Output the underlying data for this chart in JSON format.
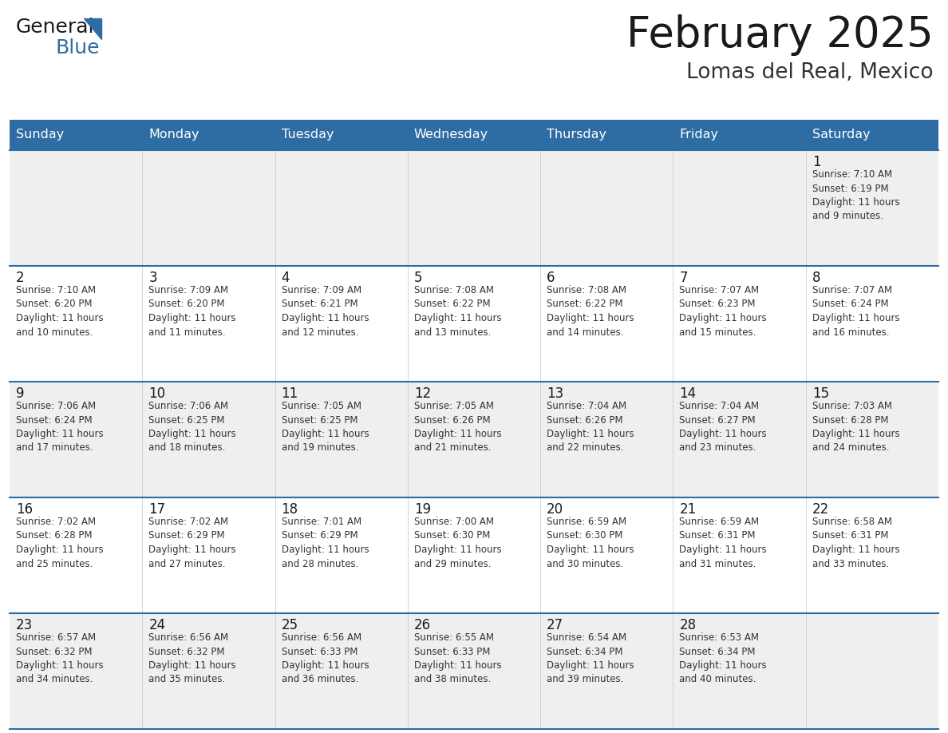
{
  "title": "February 2025",
  "subtitle": "Lomas del Real, Mexico",
  "header_bg": "#2E6DA4",
  "header_text_color": "#FFFFFF",
  "cell_bg_odd": "#EFEFEF",
  "cell_bg_even": "#FFFFFF",
  "cell_border_color": "#2E6DA4",
  "day_headers": [
    "Sunday",
    "Monday",
    "Tuesday",
    "Wednesday",
    "Thursday",
    "Friday",
    "Saturday"
  ],
  "title_color": "#1a1a1a",
  "subtitle_color": "#333333",
  "day_number_color": "#1a1a1a",
  "cell_text_color": "#333333",
  "weeks": [
    [
      {
        "day": "",
        "info": ""
      },
      {
        "day": "",
        "info": ""
      },
      {
        "day": "",
        "info": ""
      },
      {
        "day": "",
        "info": ""
      },
      {
        "day": "",
        "info": ""
      },
      {
        "day": "",
        "info": ""
      },
      {
        "day": "1",
        "info": "Sunrise: 7:10 AM\nSunset: 6:19 PM\nDaylight: 11 hours\nand 9 minutes."
      }
    ],
    [
      {
        "day": "2",
        "info": "Sunrise: 7:10 AM\nSunset: 6:20 PM\nDaylight: 11 hours\nand 10 minutes."
      },
      {
        "day": "3",
        "info": "Sunrise: 7:09 AM\nSunset: 6:20 PM\nDaylight: 11 hours\nand 11 minutes."
      },
      {
        "day": "4",
        "info": "Sunrise: 7:09 AM\nSunset: 6:21 PM\nDaylight: 11 hours\nand 12 minutes."
      },
      {
        "day": "5",
        "info": "Sunrise: 7:08 AM\nSunset: 6:22 PM\nDaylight: 11 hours\nand 13 minutes."
      },
      {
        "day": "6",
        "info": "Sunrise: 7:08 AM\nSunset: 6:22 PM\nDaylight: 11 hours\nand 14 minutes."
      },
      {
        "day": "7",
        "info": "Sunrise: 7:07 AM\nSunset: 6:23 PM\nDaylight: 11 hours\nand 15 minutes."
      },
      {
        "day": "8",
        "info": "Sunrise: 7:07 AM\nSunset: 6:24 PM\nDaylight: 11 hours\nand 16 minutes."
      }
    ],
    [
      {
        "day": "9",
        "info": "Sunrise: 7:06 AM\nSunset: 6:24 PM\nDaylight: 11 hours\nand 17 minutes."
      },
      {
        "day": "10",
        "info": "Sunrise: 7:06 AM\nSunset: 6:25 PM\nDaylight: 11 hours\nand 18 minutes."
      },
      {
        "day": "11",
        "info": "Sunrise: 7:05 AM\nSunset: 6:25 PM\nDaylight: 11 hours\nand 19 minutes."
      },
      {
        "day": "12",
        "info": "Sunrise: 7:05 AM\nSunset: 6:26 PM\nDaylight: 11 hours\nand 21 minutes."
      },
      {
        "day": "13",
        "info": "Sunrise: 7:04 AM\nSunset: 6:26 PM\nDaylight: 11 hours\nand 22 minutes."
      },
      {
        "day": "14",
        "info": "Sunrise: 7:04 AM\nSunset: 6:27 PM\nDaylight: 11 hours\nand 23 minutes."
      },
      {
        "day": "15",
        "info": "Sunrise: 7:03 AM\nSunset: 6:28 PM\nDaylight: 11 hours\nand 24 minutes."
      }
    ],
    [
      {
        "day": "16",
        "info": "Sunrise: 7:02 AM\nSunset: 6:28 PM\nDaylight: 11 hours\nand 25 minutes."
      },
      {
        "day": "17",
        "info": "Sunrise: 7:02 AM\nSunset: 6:29 PM\nDaylight: 11 hours\nand 27 minutes."
      },
      {
        "day": "18",
        "info": "Sunrise: 7:01 AM\nSunset: 6:29 PM\nDaylight: 11 hours\nand 28 minutes."
      },
      {
        "day": "19",
        "info": "Sunrise: 7:00 AM\nSunset: 6:30 PM\nDaylight: 11 hours\nand 29 minutes."
      },
      {
        "day": "20",
        "info": "Sunrise: 6:59 AM\nSunset: 6:30 PM\nDaylight: 11 hours\nand 30 minutes."
      },
      {
        "day": "21",
        "info": "Sunrise: 6:59 AM\nSunset: 6:31 PM\nDaylight: 11 hours\nand 31 minutes."
      },
      {
        "day": "22",
        "info": "Sunrise: 6:58 AM\nSunset: 6:31 PM\nDaylight: 11 hours\nand 33 minutes."
      }
    ],
    [
      {
        "day": "23",
        "info": "Sunrise: 6:57 AM\nSunset: 6:32 PM\nDaylight: 11 hours\nand 34 minutes."
      },
      {
        "day": "24",
        "info": "Sunrise: 6:56 AM\nSunset: 6:32 PM\nDaylight: 11 hours\nand 35 minutes."
      },
      {
        "day": "25",
        "info": "Sunrise: 6:56 AM\nSunset: 6:33 PM\nDaylight: 11 hours\nand 36 minutes."
      },
      {
        "day": "26",
        "info": "Sunrise: 6:55 AM\nSunset: 6:33 PM\nDaylight: 11 hours\nand 38 minutes."
      },
      {
        "day": "27",
        "info": "Sunrise: 6:54 AM\nSunset: 6:34 PM\nDaylight: 11 hours\nand 39 minutes."
      },
      {
        "day": "28",
        "info": "Sunrise: 6:53 AM\nSunset: 6:34 PM\nDaylight: 11 hours\nand 40 minutes."
      },
      {
        "day": "",
        "info": ""
      }
    ]
  ]
}
